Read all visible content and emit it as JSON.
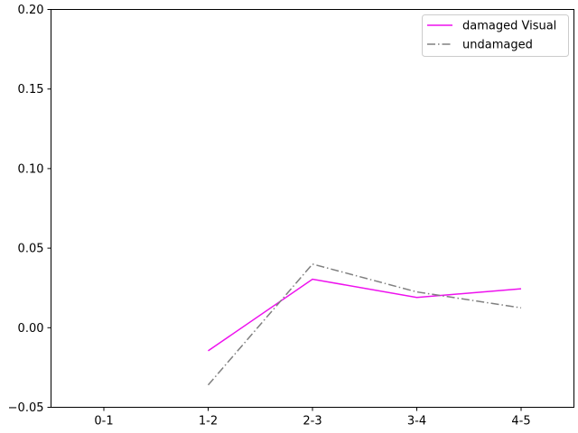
{
  "chart_data": {
    "type": "line",
    "title": "",
    "xlabel": "",
    "ylabel": "",
    "categories": [
      "0-1",
      "1-2",
      "2-3",
      "3-4",
      "4-5"
    ],
    "ylim": [
      -0.05,
      0.2
    ],
    "yticks": [
      "0.20",
      "0.15",
      "0.10",
      "0.05",
      "0.00",
      "−0.05"
    ],
    "ytick_values": [
      0.2,
      0.15,
      0.1,
      0.05,
      0.0,
      -0.05
    ],
    "grid": false,
    "legend_position": "top-right",
    "series": [
      {
        "name": "damaged Visual",
        "color": "#ee11ee",
        "style": "solid",
        "values": [
          null,
          -0.0145,
          0.0305,
          0.019,
          0.0245
        ]
      },
      {
        "name": "undamaged",
        "color": "#808080",
        "style": "dash-dot",
        "values": [
          null,
          -0.036,
          0.04,
          0.0225,
          0.0125
        ]
      }
    ]
  }
}
